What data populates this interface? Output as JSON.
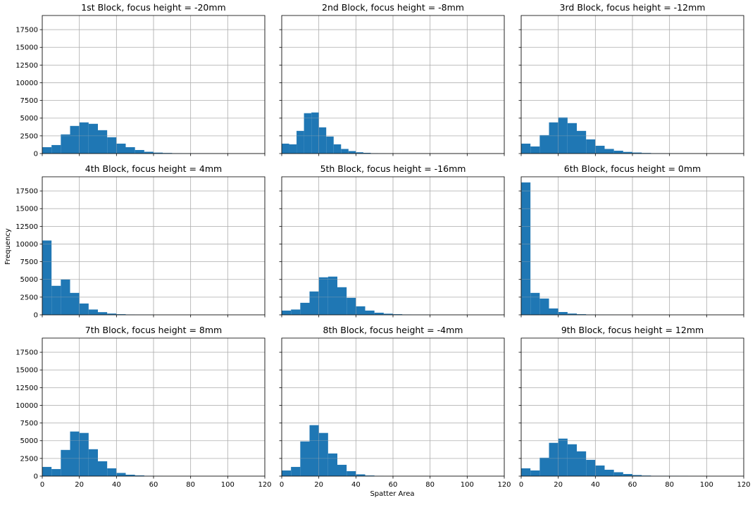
{
  "figure": {
    "ylabel": "Frequency",
    "xlabel": "Spatter Area"
  },
  "chart_data": [
    {
      "type": "bar",
      "title": "1st Block, focus height = -20mm",
      "bin_width": 5,
      "x_start": 0,
      "values": [
        900,
        1200,
        2700,
        3900,
        4400,
        4200,
        3300,
        2300,
        1400,
        900,
        500,
        250,
        130,
        80,
        50,
        40,
        30,
        20,
        10,
        0,
        0,
        0,
        0,
        0
      ],
      "xlim": [
        0,
        120
      ],
      "ylim": [
        0,
        19500
      ],
      "xticks": [
        0,
        20,
        40,
        60,
        80,
        100,
        120
      ],
      "yticks": [
        0,
        2500,
        5000,
        7500,
        10000,
        12500,
        15000,
        17500
      ],
      "color": "#1f77b4",
      "grid": true
    },
    {
      "type": "bar",
      "title": "2nd Block, focus height = -8mm",
      "bin_width": 4,
      "x_start": 0,
      "values": [
        1400,
        1300,
        3200,
        5700,
        5800,
        3700,
        2400,
        1300,
        650,
        350,
        180,
        100,
        50,
        25,
        10,
        5,
        0,
        0,
        0,
        0,
        0,
        0,
        0,
        0,
        0,
        0,
        0,
        0,
        0,
        0
      ],
      "xlim": [
        0,
        120
      ],
      "ylim": [
        0,
        19500
      ],
      "xticks": [
        0,
        20,
        40,
        60,
        80,
        100,
        120
      ],
      "yticks": [
        0,
        2500,
        5000,
        7500,
        10000,
        12500,
        15000,
        17500
      ],
      "color": "#1f77b4",
      "grid": true
    },
    {
      "type": "bar",
      "title": "3rd Block, focus height = -12mm",
      "bin_width": 5,
      "x_start": 0,
      "values": [
        1400,
        1000,
        2600,
        4400,
        5100,
        4300,
        3200,
        2000,
        1100,
        650,
        400,
        230,
        140,
        80,
        50,
        30,
        20,
        10,
        0,
        0,
        0,
        0,
        0,
        0
      ],
      "xlim": [
        0,
        120
      ],
      "ylim": [
        0,
        19500
      ],
      "xticks": [
        0,
        20,
        40,
        60,
        80,
        100,
        120
      ],
      "yticks": [
        0,
        2500,
        5000,
        7500,
        10000,
        12500,
        15000,
        17500
      ],
      "color": "#1f77b4",
      "grid": true
    },
    {
      "type": "bar",
      "title": "4th Block, focus height = 4mm",
      "bin_width": 5,
      "x_start": 0,
      "values": [
        10500,
        4100,
        5000,
        3100,
        1600,
        750,
        380,
        180,
        90,
        50,
        30,
        20,
        10,
        0,
        0,
        0,
        0,
        0,
        0,
        0,
        0,
        0,
        0,
        0
      ],
      "xlim": [
        0,
        120
      ],
      "ylim": [
        0,
        19500
      ],
      "xticks": [
        0,
        20,
        40,
        60,
        80,
        100,
        120
      ],
      "yticks": [
        0,
        2500,
        5000,
        7500,
        10000,
        12500,
        15000,
        17500
      ],
      "color": "#1f77b4",
      "grid": true
    },
    {
      "type": "bar",
      "title": "5th Block, focus height = -16mm",
      "bin_width": 5,
      "x_start": 0,
      "values": [
        600,
        750,
        1700,
        3300,
        5300,
        5400,
        3900,
        2400,
        1200,
        600,
        300,
        160,
        90,
        50,
        30,
        20,
        10,
        0,
        0,
        0,
        0,
        0,
        0,
        0
      ],
      "xlim": [
        0,
        120
      ],
      "ylim": [
        0,
        19500
      ],
      "xticks": [
        0,
        20,
        40,
        60,
        80,
        100,
        120
      ],
      "yticks": [
        0,
        2500,
        5000,
        7500,
        10000,
        12500,
        15000,
        17500
      ],
      "color": "#1f77b4",
      "grid": true
    },
    {
      "type": "bar",
      "title": "6th Block, focus height = 0mm",
      "bin_width": 5,
      "x_start": 0,
      "values": [
        18700,
        3100,
        2300,
        900,
        400,
        180,
        90,
        50,
        30,
        20,
        10,
        0,
        0,
        0,
        0,
        0,
        0,
        0,
        0,
        0,
        0,
        0,
        0,
        0
      ],
      "xlim": [
        0,
        120
      ],
      "ylim": [
        0,
        19500
      ],
      "xticks": [
        0,
        20,
        40,
        60,
        80,
        100,
        120
      ],
      "yticks": [
        0,
        2500,
        5000,
        7500,
        10000,
        12500,
        15000,
        17500
      ],
      "color": "#1f77b4",
      "grid": true
    },
    {
      "type": "bar",
      "title": "7th Block, focus height = 8mm",
      "bin_width": 5,
      "x_start": 0,
      "values": [
        1300,
        1000,
        3700,
        6300,
        6100,
        3800,
        2100,
        1100,
        450,
        200,
        100,
        50,
        20,
        0,
        0,
        0,
        0,
        0,
        0,
        0,
        0,
        0,
        0,
        0
      ],
      "xlim": [
        0,
        120
      ],
      "ylim": [
        0,
        19500
      ],
      "xticks": [
        0,
        20,
        40,
        60,
        80,
        100,
        120
      ],
      "yticks": [
        0,
        2500,
        5000,
        7500,
        10000,
        12500,
        15000,
        17500
      ],
      "color": "#1f77b4",
      "grid": true
    },
    {
      "type": "bar",
      "title": "8th Block, focus height = -4mm",
      "bin_width": 5,
      "x_start": 0,
      "values": [
        800,
        1300,
        4900,
        7200,
        6100,
        3200,
        1600,
        700,
        250,
        90,
        30,
        0,
        0,
        0,
        0,
        0,
        0,
        0,
        0,
        0,
        0,
        0,
        0,
        0
      ],
      "xlim": [
        0,
        120
      ],
      "ylim": [
        0,
        19500
      ],
      "xticks": [
        0,
        20,
        40,
        60,
        80,
        100,
        120
      ],
      "yticks": [
        0,
        2500,
        5000,
        7500,
        10000,
        12500,
        15000,
        17500
      ],
      "color": "#1f77b4",
      "grid": true
    },
    {
      "type": "bar",
      "title": "9th Block, focus height = 12mm",
      "bin_width": 5,
      "x_start": 0,
      "values": [
        1100,
        800,
        2600,
        4700,
        5300,
        4500,
        3500,
        2300,
        1500,
        900,
        550,
        300,
        150,
        80,
        50,
        40,
        40,
        30,
        10,
        0,
        0,
        0,
        0,
        0
      ],
      "xlim": [
        0,
        120
      ],
      "ylim": [
        0,
        19500
      ],
      "xticks": [
        0,
        20,
        40,
        60,
        80,
        100,
        120
      ],
      "yticks": [
        0,
        2500,
        5000,
        7500,
        10000,
        12500,
        15000,
        17500
      ],
      "color": "#1f77b4",
      "grid": true
    }
  ]
}
